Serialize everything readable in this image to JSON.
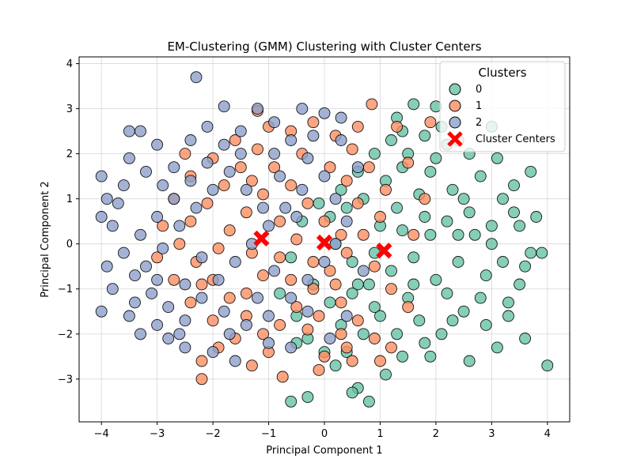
{
  "chart_data": {
    "type": "scatter",
    "title": "EM-Clustering (GMM) Clustering with Cluster Centers",
    "xlabel": "Principal Component 1",
    "ylabel": "Principal Component 2",
    "xlim": [
      -4.4,
      4.4
    ],
    "ylim": [
      -3.95,
      4.15
    ],
    "x_ticks": [
      -4,
      -3,
      -2,
      -1,
      0,
      1,
      2,
      3,
      4
    ],
    "y_ticks": [
      -3,
      -2,
      -1,
      0,
      1,
      2,
      3,
      4
    ],
    "grid": true,
    "legend": {
      "title": "Clusters",
      "placement": "top-right",
      "entries": [
        "0",
        "1",
        "2",
        "Cluster Centers"
      ]
    },
    "series": [
      {
        "name": "0",
        "color": "#66c2a5",
        "points": [
          [
            3.1,
            -2.3
          ],
          [
            3.6,
            -2.1
          ],
          [
            4.0,
            -2.7
          ],
          [
            3.9,
            -0.2
          ],
          [
            3.8,
            0.6
          ],
          [
            3.7,
            1.6
          ],
          [
            3.4,
            1.3
          ],
          [
            3.0,
            2.6
          ],
          [
            2.0,
            3.05
          ],
          [
            1.6,
            3.1
          ],
          [
            1.3,
            2.8
          ],
          [
            2.2,
            2.2
          ],
          [
            2.8,
            1.5
          ],
          [
            3.2,
            1.0
          ],
          [
            3.5,
            0.4
          ],
          [
            3.6,
            -0.5
          ],
          [
            3.3,
            -1.3
          ],
          [
            2.9,
            -1.8
          ],
          [
            2.5,
            -1.5
          ],
          [
            2.1,
            -2.0
          ],
          [
            1.8,
            -2.2
          ],
          [
            1.4,
            -2.5
          ],
          [
            1.1,
            -2.9
          ],
          [
            0.8,
            -3.5
          ],
          [
            0.6,
            -3.2
          ],
          [
            0.5,
            -3.3
          ],
          [
            -0.3,
            -3.4
          ],
          [
            -0.6,
            -3.5
          ],
          [
            0.2,
            -2.7
          ],
          [
            0.4,
            -2.4
          ],
          [
            0.7,
            -2.0
          ],
          [
            1.0,
            -1.6
          ],
          [
            1.5,
            -1.2
          ],
          [
            2.0,
            -0.8
          ],
          [
            2.4,
            -0.4
          ],
          [
            2.7,
            0.2
          ],
          [
            3.0,
            0.0
          ],
          [
            2.6,
            0.7
          ],
          [
            2.3,
            1.2
          ],
          [
            1.9,
            1.6
          ],
          [
            1.5,
            2.0
          ],
          [
            1.2,
            2.3
          ],
          [
            0.9,
            2.0
          ],
          [
            0.6,
            1.6
          ],
          [
            0.3,
            1.2
          ],
          [
            0.1,
            0.6
          ],
          [
            0.2,
            0.0
          ],
          [
            0.5,
            -0.4
          ],
          [
            0.8,
            -0.9
          ],
          [
            1.2,
            -0.6
          ],
          [
            1.6,
            -0.3
          ],
          [
            1.9,
            0.2
          ],
          [
            2.2,
            0.5
          ],
          [
            2.5,
            1.0
          ],
          [
            2.9,
            -0.7
          ],
          [
            3.2,
            -0.4
          ],
          [
            1.0,
            0.4
          ],
          [
            1.3,
            0.8
          ],
          [
            1.7,
            1.1
          ],
          [
            2.0,
            1.9
          ],
          [
            2.6,
            2.0
          ],
          [
            3.4,
            0.7
          ],
          [
            2.2,
            -1.1
          ],
          [
            1.7,
            -1.7
          ],
          [
            1.3,
            -2.0
          ],
          [
            0.9,
            -1.4
          ],
          [
            0.6,
            -0.9
          ],
          [
            0.3,
            -1.8
          ],
          [
            0.0,
            -2.4
          ],
          [
            -0.3,
            -2.1
          ],
          [
            -0.5,
            -1.6
          ],
          [
            -0.2,
            -0.9
          ],
          [
            0.4,
            0.8
          ],
          [
            0.7,
            1.0
          ],
          [
            1.1,
            1.4
          ],
          [
            1.4,
            1.7
          ],
          [
            2.8,
            -1.2
          ],
          [
            3.1,
            1.9
          ],
          [
            3.5,
            -0.9
          ],
          [
            2.3,
            -1.7
          ],
          [
            1.9,
            -2.5
          ],
          [
            2.6,
            -2.6
          ],
          [
            3.3,
            -1.6
          ],
          [
            3.7,
            -0.2
          ],
          [
            3.0,
            0.4
          ],
          [
            2.4,
            0.2
          ],
          [
            1.8,
            0.6
          ],
          [
            1.4,
            0.3
          ],
          [
            0.9,
            -0.2
          ],
          [
            2.1,
            2.6
          ],
          [
            1.8,
            2.4
          ],
          [
            1.4,
            2.5
          ],
          [
            -0.1,
            0.9
          ],
          [
            -0.4,
            0.5
          ],
          [
            -0.6,
            -0.3
          ],
          [
            -0.8,
            -1.1
          ],
          [
            -0.5,
            -2.2
          ],
          [
            0.1,
            -1.3
          ],
          [
            0.5,
            -1.1
          ],
          [
            1.6,
            -0.9
          ]
        ]
      },
      {
        "name": "1",
        "color": "#fc8d62",
        "points": [
          [
            -2.2,
            -3.0
          ],
          [
            -2.2,
            -2.6
          ],
          [
            -1.9,
            -2.3
          ],
          [
            -1.3,
            -2.7
          ],
          [
            -0.75,
            -2.95
          ],
          [
            -0.1,
            -2.8
          ],
          [
            0.0,
            -2.5
          ],
          [
            0.4,
            -2.3
          ],
          [
            0.85,
            3.1
          ],
          [
            -1.2,
            2.95
          ],
          [
            -1.0,
            2.6
          ],
          [
            -0.6,
            2.5
          ],
          [
            -0.2,
            2.7
          ],
          [
            0.2,
            2.4
          ],
          [
            0.5,
            2.1
          ],
          [
            0.8,
            1.7
          ],
          [
            1.1,
            1.2
          ],
          [
            1.0,
            0.6
          ],
          [
            0.7,
            0.2
          ],
          [
            0.4,
            -0.2
          ],
          [
            0.1,
            -0.6
          ],
          [
            -0.2,
            -1.0
          ],
          [
            -0.5,
            -1.4
          ],
          [
            -0.8,
            -1.8
          ],
          [
            -1.1,
            -2.0
          ],
          [
            -1.4,
            -1.6
          ],
          [
            -1.7,
            -1.2
          ],
          [
            -2.0,
            -0.8
          ],
          [
            -2.3,
            -0.4
          ],
          [
            -2.6,
            0.0
          ],
          [
            -2.4,
            0.5
          ],
          [
            -2.1,
            0.9
          ],
          [
            -1.8,
            1.3
          ],
          [
            -1.5,
            1.7
          ],
          [
            -1.2,
            2.1
          ],
          [
            -0.9,
            1.7
          ],
          [
            -0.6,
            1.3
          ],
          [
            -0.3,
            0.9
          ],
          [
            0.0,
            0.5
          ],
          [
            0.3,
            0.2
          ],
          [
            -0.5,
            0.1
          ],
          [
            -0.8,
            -0.3
          ],
          [
            -1.1,
            -0.7
          ],
          [
            -1.4,
            -1.1
          ],
          [
            -1.7,
            0.3
          ],
          [
            -1.4,
            0.7
          ],
          [
            -1.1,
            1.1
          ],
          [
            -0.8,
            0.5
          ],
          [
            -0.2,
            -0.4
          ],
          [
            0.3,
            -1.3
          ],
          [
            0.6,
            -1.7
          ],
          [
            0.9,
            -2.1
          ],
          [
            0.3,
            -2.0
          ],
          [
            -0.3,
            -1.9
          ],
          [
            -1.0,
            -2.4
          ],
          [
            -1.6,
            -2.1
          ],
          [
            -2.0,
            -1.7
          ],
          [
            -2.4,
            -1.3
          ],
          [
            -2.7,
            -0.8
          ],
          [
            -3.0,
            -0.3
          ],
          [
            -2.9,
            0.4
          ],
          [
            -2.7,
            1.0
          ],
          [
            -2.4,
            1.5
          ],
          [
            -2.0,
            1.9
          ],
          [
            -1.6,
            2.3
          ],
          [
            0.1,
            1.7
          ],
          [
            0.4,
            1.4
          ],
          [
            0.6,
            0.9
          ],
          [
            0.9,
            -0.5
          ],
          [
            1.2,
            -1.0
          ],
          [
            1.5,
            -1.4
          ],
          [
            1.2,
            -2.3
          ],
          [
            0.6,
            2.6
          ],
          [
            1.3,
            2.6
          ],
          [
            1.5,
            1.8
          ],
          [
            1.8,
            1.0
          ],
          [
            1.6,
            0.2
          ],
          [
            -0.4,
            2.0
          ],
          [
            -0.1,
            -1.6
          ],
          [
            -1.3,
            -0.2
          ],
          [
            -1.9,
            -0.1
          ],
          [
            -2.2,
            -0.9
          ],
          [
            -0.6,
            -0.8
          ],
          [
            0.2,
            -0.9
          ],
          [
            1.9,
            2.7
          ],
          [
            2.4,
            2.3
          ],
          [
            -2.5,
            2.0
          ],
          [
            -1.3,
            1.4
          ],
          [
            0.5,
            -2.6
          ],
          [
            1.0,
            -2.6
          ]
        ]
      },
      {
        "name": "2",
        "color": "#8da0cb",
        "points": [
          [
            -2.3,
            3.7
          ],
          [
            -1.8,
            3.05
          ],
          [
            -4.0,
            1.5
          ],
          [
            -4.0,
            0.6
          ],
          [
            -3.9,
            -0.5
          ],
          [
            -4.0,
            -1.5
          ],
          [
            -3.5,
            -1.6
          ],
          [
            -3.3,
            -2.0
          ],
          [
            -3.0,
            -1.8
          ],
          [
            -2.8,
            -2.1
          ],
          [
            -2.5,
            -2.3
          ],
          [
            -2.0,
            -2.4
          ],
          [
            -1.7,
            -2.0
          ],
          [
            -1.4,
            -1.8
          ],
          [
            -1.0,
            -1.6
          ],
          [
            -0.6,
            -1.2
          ],
          [
            -0.3,
            -0.8
          ],
          [
            0.0,
            -0.4
          ],
          [
            0.2,
            0.0
          ],
          [
            0.4,
            0.5
          ],
          [
            0.2,
            1.0
          ],
          [
            0.0,
            1.5
          ],
          [
            -0.3,
            1.9
          ],
          [
            -0.6,
            2.3
          ],
          [
            -0.9,
            2.7
          ],
          [
            -1.2,
            3.0
          ],
          [
            -0.4,
            3.0
          ],
          [
            0.0,
            2.9
          ],
          [
            0.3,
            2.8
          ],
          [
            -1.5,
            2.5
          ],
          [
            -1.8,
            2.2
          ],
          [
            -2.1,
            1.8
          ],
          [
            -2.4,
            1.4
          ],
          [
            -2.7,
            1.0
          ],
          [
            -3.0,
            0.6
          ],
          [
            -3.3,
            0.2
          ],
          [
            -3.6,
            -0.2
          ],
          [
            -3.4,
            -0.7
          ],
          [
            -3.1,
            -1.1
          ],
          [
            -2.8,
            -1.4
          ],
          [
            -2.5,
            -1.7
          ],
          [
            -2.2,
            -1.2
          ],
          [
            -1.9,
            -0.8
          ],
          [
            -1.6,
            -0.4
          ],
          [
            -1.3,
            0.0
          ],
          [
            -1.0,
            0.4
          ],
          [
            -0.7,
            0.8
          ],
          [
            -0.4,
            1.2
          ],
          [
            -3.7,
            0.9
          ],
          [
            -3.5,
            1.9
          ],
          [
            -3.3,
            2.5
          ],
          [
            -3.0,
            2.2
          ],
          [
            -2.7,
            1.7
          ],
          [
            -2.4,
            2.3
          ],
          [
            -2.1,
            2.6
          ],
          [
            -3.8,
            0.4
          ],
          [
            -3.2,
            -0.5
          ],
          [
            -2.9,
            -0.1
          ],
          [
            -2.6,
            0.4
          ],
          [
            -2.3,
            0.8
          ],
          [
            -2.0,
            1.2
          ],
          [
            -1.7,
            1.6
          ],
          [
            -1.4,
            1.2
          ],
          [
            -1.1,
            0.8
          ],
          [
            -0.8,
            1.5
          ],
          [
            -0.5,
            0.6
          ],
          [
            -2.2,
            -0.3
          ],
          [
            -2.5,
            -0.9
          ],
          [
            -1.8,
            -1.5
          ],
          [
            -1.2,
            -1.2
          ],
          [
            -0.9,
            -0.6
          ],
          [
            -3.6,
            1.3
          ],
          [
            -3.8,
            -1.0
          ],
          [
            -3.4,
            -1.3
          ],
          [
            -3.0,
            -0.8
          ],
          [
            -2.6,
            -2.0
          ],
          [
            -1.6,
            -2.6
          ],
          [
            -0.6,
            -2.3
          ],
          [
            0.4,
            -1.6
          ],
          [
            0.7,
            -0.6
          ],
          [
            0.6,
            1.7
          ],
          [
            0.3,
            2.3
          ],
          [
            -3.5,
            2.5
          ],
          [
            -3.9,
            1.0
          ],
          [
            -3.2,
            1.6
          ],
          [
            -2.9,
            1.3
          ],
          [
            -1.5,
            2.0
          ],
          [
            -0.9,
            2.0
          ],
          [
            -0.2,
            2.4
          ],
          [
            -1.0,
            -2.2
          ],
          [
            -0.3,
            -1.5
          ],
          [
            0.1,
            -2.1
          ]
        ]
      }
    ],
    "centers": {
      "name": "Cluster Centers",
      "color": "#ff0000",
      "points": [
        [
          -1.13,
          0.12
        ],
        [
          0.0,
          0.03
        ],
        [
          1.07,
          -0.15
        ]
      ]
    }
  }
}
